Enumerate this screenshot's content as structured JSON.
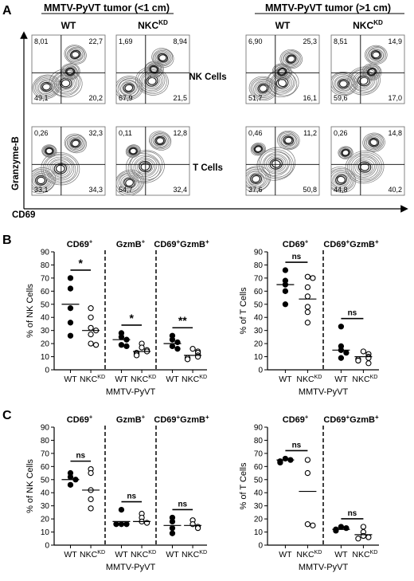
{
  "panel_labels": [
    "A",
    "B",
    "C"
  ],
  "panel_a": {
    "groups": [
      "MMTV-PyVT tumor (<1 cm)",
      "MMTV-PyVT tumor (>1 cm)"
    ],
    "col_labels": [
      "WT",
      "NKC",
      "WT",
      "NKC"
    ],
    "col_sups": [
      "",
      "KD",
      "",
      "KD"
    ],
    "row_labels": [
      "NK Cells",
      "T Cells"
    ],
    "y_axis_label": "Granzyme-B",
    "x_axis_label": "CD69",
    "quadrants": [
      [
        [
          "8,01",
          "22,7",
          "49,1",
          "20,2"
        ],
        [
          "1,69",
          "8,94",
          "67,9",
          "21,5"
        ],
        [
          "6,90",
          "25,3",
          "51,7",
          "16,1"
        ],
        [
          "8,51",
          "14,9",
          "59,6",
          "17,0"
        ]
      ],
      [
        [
          "0,26",
          "32,3",
          "33,1",
          "34,3"
        ],
        [
          "0,11",
          "12,8",
          "54,7",
          "32,4"
        ],
        [
          "0,46",
          "11,2",
          "37,6",
          "50,8"
        ],
        [
          "0,26",
          "14,8",
          "44,8",
          "40,2"
        ]
      ]
    ]
  },
  "text": {
    "cd69": "CD69",
    "gzmb": "GzmB",
    "cd69gzmb_a": "CD69",
    "cd69gzmb_b": "GzmB",
    "plus": "+",
    "wt": "WT",
    "nkc": "NKC",
    "kd": "KD",
    "mmtv": "MMTV-PyVT",
    "ylabel_nk": "% of NK Cells",
    "ylabel_t": "% of T Cells"
  },
  "chart_data": [
    {
      "type": "scatter",
      "panel": "B",
      "ylabel": "% of NK Cells",
      "xlabel": "MMTV-PyVT",
      "ylim": [
        0,
        90
      ],
      "yticks": [
        0,
        10,
        20,
        30,
        40,
        50,
        60,
        70,
        80,
        90
      ],
      "sections": [
        {
          "label": "CD69+",
          "significance": "*",
          "wt": [
            70,
            62,
            47,
            36,
            26
          ],
          "wt_mean": 50,
          "nkc": [
            47,
            40,
            32,
            30,
            27,
            20,
            19
          ],
          "nkc_mean": 30
        },
        {
          "label": "GzmB+",
          "significance": "*",
          "wt": [
            28,
            25,
            23,
            19,
            18
          ],
          "wt_mean": 23,
          "nkc": [
            20,
            17,
            15,
            14,
            13,
            12,
            11
          ],
          "nkc_mean": 14
        },
        {
          "label": "CD69+GzmB+",
          "significance": "**",
          "wt": [
            26,
            23,
            21,
            18,
            16
          ],
          "wt_mean": 20,
          "nkc": [
            16,
            14,
            13,
            11,
            10,
            9,
            8
          ],
          "nkc_mean": 11
        }
      ]
    },
    {
      "type": "scatter",
      "panel": "B",
      "ylabel": "% of T Cells",
      "xlabel": "MMTV-PyVT",
      "ylim": [
        0,
        90
      ],
      "yticks": [
        0,
        10,
        20,
        30,
        40,
        50,
        60,
        70,
        80,
        90
      ],
      "sections": [
        {
          "label": "CD69+",
          "significance": "ns",
          "wt": [
            76,
            68,
            65,
            60,
            50
          ],
          "wt_mean": 65,
          "nkc": [
            71,
            70,
            63,
            56,
            48,
            44,
            36
          ],
          "nkc_mean": 54
        },
        {
          "label": "CD69+GzmB+",
          "significance": "ns",
          "wt": [
            33,
            18,
            15,
            13,
            9
          ],
          "wt_mean": 15,
          "nkc": [
            14,
            12,
            10,
            9,
            8,
            7,
            5
          ],
          "nkc_mean": 10
        }
      ]
    },
    {
      "type": "scatter",
      "panel": "C",
      "ylabel": "% of NK Cells",
      "xlabel": "MMTV-PyVT",
      "ylim": [
        0,
        90
      ],
      "yticks": [
        0,
        10,
        20,
        30,
        40,
        50,
        60,
        70,
        80,
        90
      ],
      "sections": [
        {
          "label": "CD69+",
          "significance": "ns",
          "wt": [
            55,
            52,
            50,
            46
          ],
          "wt_mean": 50,
          "nkc": [
            58,
            55,
            42,
            35,
            28
          ],
          "nkc_mean": 42
        },
        {
          "label": "GzmB+",
          "significance": "ns",
          "wt": [
            27,
            16,
            16,
            16
          ],
          "wt_mean": 18,
          "nkc": [
            24,
            21,
            18,
            17
          ],
          "nkc_mean": 18
        },
        {
          "label": "CD69+GzmB+",
          "significance": "ns",
          "wt": [
            21,
            18,
            13,
            9
          ],
          "wt_mean": 15,
          "nkc": [
            19,
            16,
            14,
            13
          ],
          "nkc_mean": 15
        }
      ]
    },
    {
      "type": "scatter",
      "panel": "C",
      "ylabel": "% of T Cells",
      "xlabel": "MMTV-PyVT",
      "ylim": [
        0,
        90
      ],
      "yticks": [
        0,
        10,
        20,
        30,
        40,
        50,
        60,
        70,
        80,
        90
      ],
      "sections": [
        {
          "label": "CD69+",
          "significance": "ns",
          "wt": [
            66,
            65,
            64,
            63
          ],
          "wt_mean": 65,
          "nkc": [
            65,
            55,
            16,
            15
          ],
          "nkc_mean": 41
        },
        {
          "label": "CD69+GzmB+",
          "significance": "ns",
          "wt": [
            14,
            13,
            12,
            11
          ],
          "wt_mean": 12,
          "nkc": [
            14,
            10,
            7,
            6,
            5
          ],
          "nkc_mean": 8
        }
      ]
    }
  ]
}
